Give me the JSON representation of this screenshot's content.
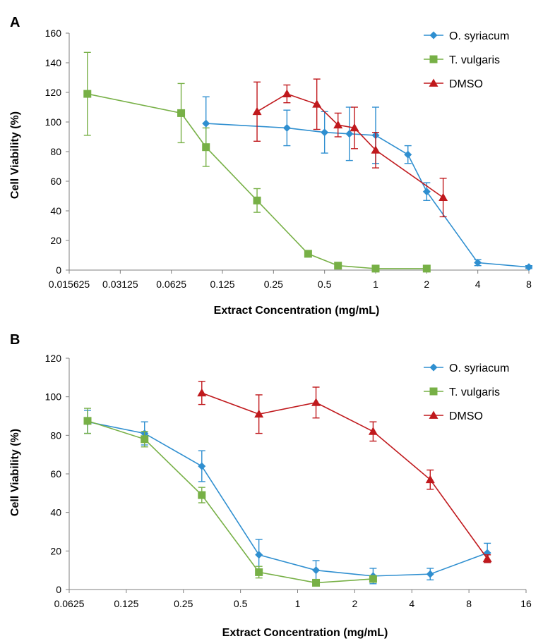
{
  "chart_data": [
    {
      "panel_label": "A",
      "type": "line",
      "xscale": "log2",
      "xlabel": "Extract Concentration (mg/mL)",
      "ylabel": "Cell Viability (%)",
      "xlim": [
        0.015625,
        8
      ],
      "ylim": [
        0,
        160
      ],
      "xticks": [
        0.015625,
        0.03125,
        0.0625,
        0.125,
        0.25,
        0.5,
        1,
        2,
        4,
        8
      ],
      "xtick_labels": [
        "0.015625",
        "0.03125",
        "0.0625",
        "0.125",
        "0.25",
        "0.5",
        "1",
        "2",
        "4",
        "8"
      ],
      "yticks": [
        0,
        20,
        40,
        60,
        80,
        100,
        120,
        140,
        160
      ],
      "ytick_labels": [
        "0",
        "20",
        "40",
        "60",
        "80",
        "100",
        "120",
        "140",
        "160"
      ],
      "grid": false,
      "legend_position": "top-right",
      "series": [
        {
          "name": "O. syriacum",
          "color": "#2f8fd0",
          "marker": "diamond",
          "x": [
            0.1,
            0.3,
            0.5,
            0.7,
            1.0,
            1.55,
            2.0,
            4.0,
            8.0
          ],
          "y": [
            99,
            96,
            93,
            92,
            91,
            78,
            53,
            5,
            2
          ],
          "err": [
            18,
            12,
            14,
            18,
            19,
            6,
            6,
            2,
            1
          ]
        },
        {
          "name": "T. vulgaris",
          "color": "#77b046",
          "marker": "square",
          "x": [
            0.02,
            0.0714,
            0.1,
            0.2,
            0.4,
            0.6,
            1.0,
            2.0
          ],
          "y": [
            119,
            106,
            83,
            47,
            11,
            3,
            1,
            1
          ],
          "err": [
            28,
            20,
            13,
            8,
            2,
            1,
            0.5,
            0.5
          ]
        },
        {
          "name": "DMSO",
          "color": "#c0191d",
          "marker": "triangle",
          "x": [
            0.2,
            0.3,
            0.45,
            0.6,
            0.75,
            1.0,
            2.5
          ],
          "y": [
            107,
            119,
            112,
            98,
            96,
            81,
            49
          ],
          "err": [
            20,
            6,
            17,
            8,
            14,
            12,
            13
          ]
        }
      ]
    },
    {
      "panel_label": "B",
      "type": "line",
      "xscale": "log2",
      "xlabel": "Extract Concentration (mg/mL)",
      "ylabel": "Cell Viability (%)",
      "xlim": [
        0.0625,
        16
      ],
      "ylim": [
        0,
        120
      ],
      "xticks": [
        0.0625,
        0.125,
        0.25,
        0.5,
        1,
        2,
        4,
        8,
        16
      ],
      "xtick_labels": [
        "0.0625",
        "0.125",
        "0.25",
        "0.5",
        "1",
        "2",
        "4",
        "8",
        "16"
      ],
      "yticks": [
        0,
        20,
        40,
        60,
        80,
        100,
        120
      ],
      "ytick_labels": [
        "0",
        "20",
        "40",
        "60",
        "80",
        "100",
        "120"
      ],
      "grid": false,
      "legend_position": "top-right",
      "series": [
        {
          "name": "O. syriacum",
          "color": "#2f8fd0",
          "marker": "diamond",
          "x": [
            0.0781,
            0.156,
            0.3125,
            0.625,
            1.25,
            2.5,
            5.0,
            10.0
          ],
          "y": [
            87,
            81,
            64,
            18,
            10,
            7,
            8,
            19
          ],
          "err": [
            6,
            6,
            8,
            8,
            5,
            4,
            3,
            5
          ]
        },
        {
          "name": "T. vulgaris",
          "color": "#77b046",
          "marker": "square",
          "x": [
            0.0781,
            0.156,
            0.3125,
            0.625,
            1.25,
            2.5
          ],
          "y": [
            87.5,
            78,
            49,
            9,
            3.5,
            5.5
          ],
          "err": [
            6.5,
            4,
            4,
            3,
            1,
            1
          ]
        },
        {
          "name": "DMSO",
          "color": "#c0191d",
          "marker": "triangle",
          "x": [
            0.3125,
            0.625,
            1.25,
            2.5,
            5.0,
            10.0
          ],
          "y": [
            102,
            91,
            97,
            82,
            57,
            16
          ],
          "err": [
            6,
            10,
            8,
            5,
            5,
            2
          ]
        }
      ]
    }
  ]
}
